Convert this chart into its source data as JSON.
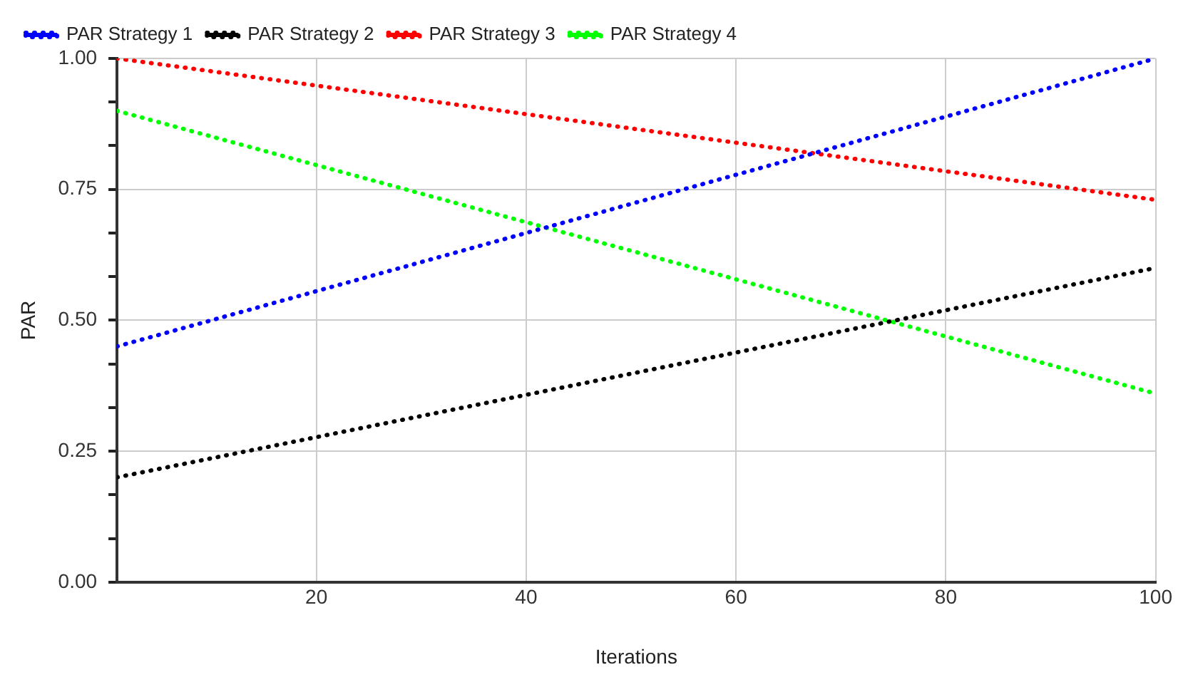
{
  "chart_data": {
    "type": "line",
    "xlabel": "Iterations",
    "ylabel": "PAR",
    "x": [
      1,
      100
    ],
    "series": [
      {
        "name": "PAR Strategy 1",
        "color": "#0000ff",
        "values": [
          0.45,
          1.0
        ]
      },
      {
        "name": "PAR Strategy 2",
        "color": "#000000",
        "values": [
          0.2,
          0.6
        ]
      },
      {
        "name": "PAR Strategy 3",
        "color": "#ff0000",
        "values": [
          1.0,
          0.73
        ]
      },
      {
        "name": "PAR Strategy 4",
        "color": "#00ff00",
        "values": [
          0.9,
          0.36
        ]
      }
    ],
    "xlim": [
      1,
      100
    ],
    "xticks": [
      20,
      40,
      60,
      80,
      100
    ],
    "ylim": [
      0,
      1
    ],
    "yticks": [
      {
        "value": 0,
        "label": "0.00"
      },
      {
        "value": 0.0833,
        "label": null
      },
      {
        "value": 0.1667,
        "label": null
      },
      {
        "value": 0.25,
        "label": "0.25"
      },
      {
        "value": 0.3333,
        "label": null
      },
      {
        "value": 0.4167,
        "label": null
      },
      {
        "value": 0.5,
        "label": "0.50"
      },
      {
        "value": 0.5833,
        "label": null
      },
      {
        "value": 0.6667,
        "label": null
      },
      {
        "value": 0.75,
        "label": "0.75"
      },
      {
        "value": 0.8333,
        "label": null
      },
      {
        "value": 0.9167,
        "label": null
      },
      {
        "value": 1,
        "label": "1.00"
      }
    ],
    "grid": true,
    "legend": "top",
    "marker": "none",
    "line_style": "dotted"
  }
}
